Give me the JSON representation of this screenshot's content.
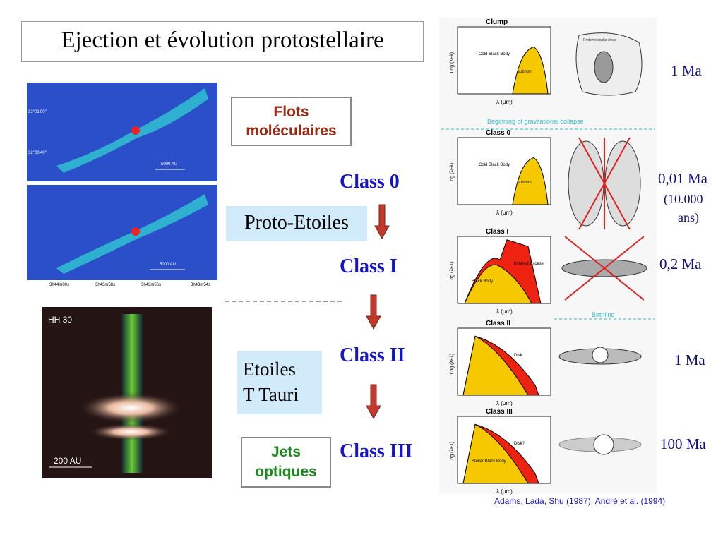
{
  "title": "Ejection et évolution protostellaire",
  "boxes": {
    "flots": [
      "Flots",
      "moléculaires"
    ],
    "proto": "Proto-Etoiles",
    "ttauri": [
      "Etoiles",
      "T Tauri"
    ],
    "jets": [
      "Jets",
      "optiques"
    ]
  },
  "classes": [
    "Class 0",
    "Class I",
    "Class II",
    "Class III"
  ],
  "images": {
    "scale_top": "5000 AU",
    "scale_bottom": "5000 AU",
    "hh30": "HH 30",
    "hh30_scale": "200 AU",
    "dec_ticks": [
      "32°01'00\"",
      "32°00'40\""
    ],
    "ra_ticks": [
      "3h44m00s",
      "3h43m58s",
      "3h43m56s",
      "3h43m54s"
    ]
  },
  "sed_panels": [
    {
      "title": "Clump",
      "xlabel": "λ (μm)",
      "ylabel": "Log (λFλ)",
      "notes": [
        "Cold Black Body",
        "submm"
      ]
    },
    {
      "title": "Class 0",
      "xlabel": "λ (μm)",
      "ylabel": "Log (λFλ)",
      "notes": [
        "Cold Black Body",
        "submm"
      ]
    },
    {
      "title": "Class I",
      "xlabel": "λ (μm)",
      "ylabel": "Log (λFλ)",
      "notes": [
        "Infrared Excess",
        "Black Body"
      ]
    },
    {
      "title": "Class II",
      "xlabel": "λ (μm)",
      "ylabel": "Log (λFλ)",
      "notes": [
        "Disk"
      ]
    },
    {
      "title": "Class III",
      "xlabel": "λ (μm)",
      "ylabel": "Log (λFλ)",
      "notes": [
        "Disk?",
        "Stellar Black Body"
      ]
    }
  ],
  "cloud_label": "Protomolecular cloud",
  "collapse": "Beginning of gravitational collapse",
  "birthline": "Birthline",
  "ages": [
    "1 Ma",
    "0,01 Ma",
    "(10.000",
    "ans)",
    "0,2 Ma",
    "1 Ma",
    "100 Ma"
  ],
  "citation": "Adams, Lada, Shu (1987); André et al. (1994)"
}
